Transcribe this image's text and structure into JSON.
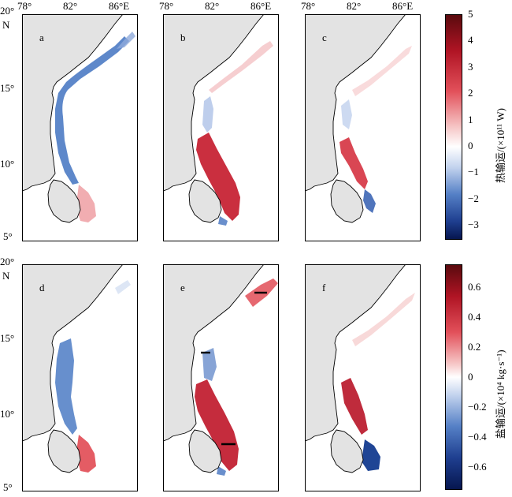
{
  "panels": [
    {
      "id": "a",
      "label": "a"
    },
    {
      "id": "b",
      "label": "b"
    },
    {
      "id": "c",
      "label": "c"
    },
    {
      "id": "d",
      "label": "d"
    },
    {
      "id": "e",
      "label": "e"
    },
    {
      "id": "f",
      "label": "f"
    }
  ],
  "axes": {
    "lon_ticks": [
      "78°",
      "82°",
      "86°E"
    ],
    "lat_ticks_top": [
      "20°",
      "N",
      "15°",
      "10°",
      "5°"
    ],
    "lat_ticks_bottom": [
      "20°",
      "N",
      "15°",
      "10°",
      "5°"
    ]
  },
  "colorbar_heat": {
    "title": "热输运/(×10¹¹ W)",
    "ticks": [
      "5",
      "4",
      "3",
      "2",
      "1",
      "0",
      "−1",
      "−2",
      "−3"
    ],
    "range": [
      -3.5,
      5
    ]
  },
  "colorbar_salt": {
    "title": "盐输运/(×10⁴ kg·s⁻¹)",
    "ticks": [
      "0.6",
      "0.4",
      "0.2",
      "0",
      "−0.2",
      "−0.4",
      "−0.6"
    ],
    "range": [
      -0.75,
      0.75
    ]
  },
  "colors": {
    "land": "#e3e3e3",
    "coast": "#000000",
    "positive": "#c8102e",
    "negative": "#2f5fb3",
    "frame": "#000000"
  }
}
